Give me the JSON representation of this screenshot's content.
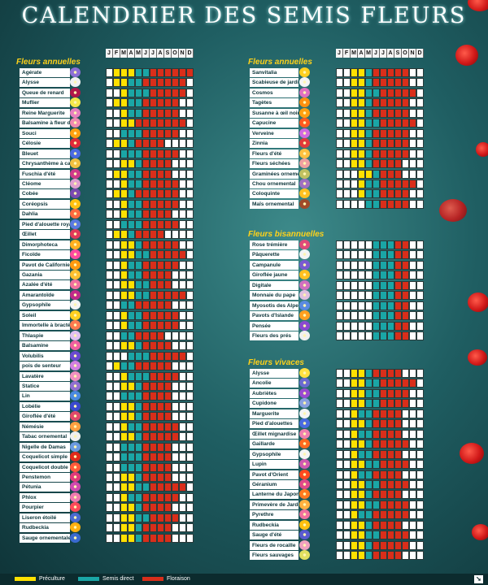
{
  "title": "CALENDRIER DES SEMIS FLEURS",
  "months": [
    "J",
    "F",
    "M",
    "A",
    "M",
    "J",
    "J",
    "A",
    "S",
    "O",
    "N",
    "D"
  ],
  "colors": {
    "preculture": "#ffe100",
    "semis": "#1aa6a6",
    "floraison": "#d92e1a"
  },
  "legend": {
    "preculture": "Préculture",
    "semis": "Semis direct",
    "floraison": "Floraison"
  },
  "logo_icon": "arrow-logo-icon",
  "left_section": {
    "title": "Fleurs annuelles",
    "plants": [
      {
        "name": "Agérate",
        "flower": "#8c6fd6"
      },
      {
        "name": "Alysse",
        "flower": "#f2f2f2"
      },
      {
        "name": "Queue de renard",
        "flower": "#b0184a"
      },
      {
        "name": "Muflier",
        "flower": "#f5e84a"
      },
      {
        "name": "Reine Marguerite",
        "flower": "#e880c0"
      },
      {
        "name": "Balsamine à fleur de Caméli",
        "flower": "#f08ab0"
      },
      {
        "name": "Souci",
        "flower": "#ffa010"
      },
      {
        "name": "Célosie",
        "flower": "#e02a3a"
      },
      {
        "name": "Bleuet",
        "flower": "#4a6ae0"
      },
      {
        "name": "Chrysanthème à carène",
        "flower": "#f0c040"
      },
      {
        "name": "Fuschia d'été",
        "flower": "#d03a8a"
      },
      {
        "name": "Cléome",
        "flower": "#e0a0d0"
      },
      {
        "name": "Cobée",
        "flower": "#7a4ab0"
      },
      {
        "name": "Coréopsis",
        "flower": "#ffc010"
      },
      {
        "name": "Dahlia",
        "flower": "#ff6a40"
      },
      {
        "name": "Pied d'alouette royal",
        "flower": "#5a7ae0"
      },
      {
        "name": "Œillet",
        "flower": "#e03a5a"
      },
      {
        "name": "Dimorphoteca",
        "flower": "#ffb020"
      },
      {
        "name": "Ficoïde",
        "flower": "#ff4aa0"
      },
      {
        "name": "Pavot de Californie",
        "flower": "#ff9a10"
      },
      {
        "name": "Gazania",
        "flower": "#ffc030"
      },
      {
        "name": "Azalée d'été",
        "flower": "#f070a0"
      },
      {
        "name": "Amarantoïde",
        "flower": "#c02a8a"
      },
      {
        "name": "Gypsophile",
        "flower": "#f4f4f4"
      },
      {
        "name": "Soleil",
        "flower": "#ffd020"
      },
      {
        "name": "Immortelle à bractées",
        "flower": "#ff7a50"
      },
      {
        "name": "Thlaspie",
        "flower": "#e0c0f0"
      },
      {
        "name": "Balsamine",
        "flower": "#f060a0"
      },
      {
        "name": "Volubilis",
        "flower": "#6a4ad0"
      },
      {
        "name": "pois de senteur",
        "flower": "#d080e0"
      },
      {
        "name": "Lavatère",
        "flower": "#f090c0"
      },
      {
        "name": "Statice",
        "flower": "#9070d0"
      },
      {
        "name": "Lin",
        "flower": "#4a8ae0"
      },
      {
        "name": "Lobélie",
        "flower": "#3a4ad0"
      },
      {
        "name": "Giroflée d'été",
        "flower": "#e04a6a"
      },
      {
        "name": "Némésie",
        "flower": "#ffa040"
      },
      {
        "name": "Tabac ornemental",
        "flower": "#f0f0f0"
      },
      {
        "name": "Nigelle de Damas",
        "flower": "#6a9ae0"
      },
      {
        "name": "Coquelicot simple",
        "flower": "#e02a1a"
      },
      {
        "name": "Coquelicot double",
        "flower": "#ff5a3a"
      },
      {
        "name": "Penstemon",
        "flower": "#e03a7a"
      },
      {
        "name": "Pétunia",
        "flower": "#d04ab0"
      },
      {
        "name": "Phlox",
        "flower": "#f07ab0"
      },
      {
        "name": "Pourpier",
        "flower": "#ff4a5a"
      },
      {
        "name": "Liseron étoilé",
        "flower": "#4a6ad0"
      },
      {
        "name": "Rudbeckia",
        "flower": "#ffb010"
      },
      {
        "name": "Sauge ornementale",
        "flower": "#3a6ad0"
      }
    ]
  },
  "right_sections": [
    {
      "title": "Fleurs annuelles",
      "plants": [
        {
          "name": "Sanvitalia",
          "flower": "#ffd020"
        },
        {
          "name": "Scabieuse de jardin",
          "flower": "#f4f4f4"
        },
        {
          "name": "Cosmos",
          "flower": "#e070c0"
        },
        {
          "name": "Tagètes",
          "flower": "#ff9010"
        },
        {
          "name": "Susanne à œil noir",
          "flower": "#ffa010"
        },
        {
          "name": "Capucine",
          "flower": "#ff5a20"
        },
        {
          "name": "Verveine",
          "flower": "#d06ae0"
        },
        {
          "name": "Zinnia",
          "flower": "#e03a3a"
        },
        {
          "name": "Fleurs d'été",
          "flower": "#ffc040"
        },
        {
          "name": "Fleurs séchées",
          "flower": "#f0a0a0"
        },
        {
          "name": "Graminées ornementales",
          "flower": "#c0c060"
        },
        {
          "name": "Chou ornemental",
          "flower": "#a070c0"
        },
        {
          "name": "Coloquinte",
          "flower": "#ffc020"
        },
        {
          "name": "Maïs ornemental",
          "flower": "#a04a2a"
        }
      ]
    },
    {
      "title": "Fleurs bisannuelles",
      "plants": [
        {
          "name": "Rose trémière",
          "flower": "#e04a7a"
        },
        {
          "name": "Pâquerette",
          "flower": "#f4f4f4"
        },
        {
          "name": "Campanule",
          "flower": "#7a5ad0"
        },
        {
          "name": "Giroflée jaune",
          "flower": "#ffc020"
        },
        {
          "name": "Digitale",
          "flower": "#d070c0"
        },
        {
          "name": "Monnaie du pape",
          "flower": "#e0c0e0"
        },
        {
          "name": "Myosotis des Alpes",
          "flower": "#5a8ae0"
        },
        {
          "name": "Pavots d'Islande",
          "flower": "#ffa020"
        },
        {
          "name": "Pensée",
          "flower": "#8a4ad0"
        },
        {
          "name": "Fleurs des prés",
          "flower": "#f0f0f0"
        }
      ]
    },
    {
      "title": "Fleurs vivaces",
      "plants": [
        {
          "name": "Alysse",
          "flower": "#ffe040"
        },
        {
          "name": "Ancolie",
          "flower": "#6a6ad0"
        },
        {
          "name": "Aubriètes",
          "flower": "#9a4ad0"
        },
        {
          "name": "Cupidone",
          "flower": "#8aa0e0"
        },
        {
          "name": "Marguerite",
          "flower": "#f4f4f4"
        },
        {
          "name": "Pied d'alouettes",
          "flower": "#4a6ae0"
        },
        {
          "name": "Œillet mignardise",
          "flower": "#f080b0"
        },
        {
          "name": "Gaillarde",
          "flower": "#ff6a20"
        },
        {
          "name": "Gypsophile",
          "flower": "#f4f4f4"
        },
        {
          "name": "Lupin",
          "flower": "#d05ab0"
        },
        {
          "name": "Pavot d'Orient",
          "flower": "#ff4a20"
        },
        {
          "name": "Géranium",
          "flower": "#e04a8a"
        },
        {
          "name": "Lanterne du Japon",
          "flower": "#ff7a20"
        },
        {
          "name": "Primevère de Jardin",
          "flower": "#ffb040"
        },
        {
          "name": "Pyrethre",
          "flower": "#f070a0"
        },
        {
          "name": "Rudbeckia",
          "flower": "#ffc010"
        },
        {
          "name": "Sauge d'été",
          "flower": "#5a5ad0"
        },
        {
          "name": "Fleurs de rocaille",
          "flower": "#f0a0c0"
        },
        {
          "name": "Fleurs sauvages",
          "flower": "#e0e060"
        }
      ]
    }
  ]
}
